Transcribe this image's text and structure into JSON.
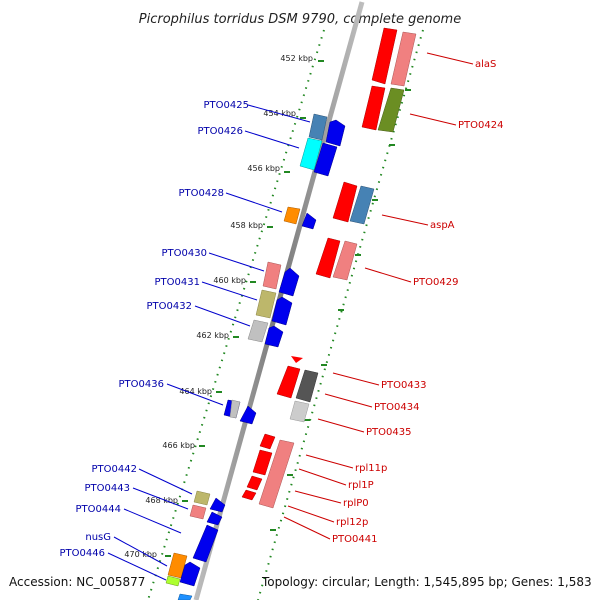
{
  "title": "Picrophilus torridus DSM 9790, complete genome",
  "footer": {
    "accession": "Accession: NC_005877",
    "topology": "Topology: circular; Length: 1,545,895 bp; Genes: 1,583"
  },
  "ticks": [
    "452 kbp",
    "454 kbp",
    "456 kbp",
    "458 kbp",
    "460 kbp",
    "462 kbp",
    "464 kbp",
    "466 kbp",
    "468 kbp",
    "470 kbp"
  ],
  "left_labels": [
    "PTO0425",
    "PTO0426",
    "PTO0428",
    "PTO0430",
    "PTO0431",
    "PTO0432",
    "PTO0436",
    "PTO0442",
    "PTO0443",
    "PTO0444",
    "nusG",
    "PTO0446"
  ],
  "right_labels": [
    "alaS",
    "PTO0424",
    "aspA",
    "PTO0429",
    "PTO0433",
    "PTO0434",
    "PTO0435",
    "rpl11p",
    "rpl1P",
    "rplP0",
    "rpl12p",
    "PTO0441"
  ],
  "colors": {
    "forward": "#0000ee",
    "reverse": "#ff0000",
    "backbone": "#888888",
    "tick": "#228822",
    "left_line": "#0000cc",
    "right_line": "#cc0000"
  }
}
